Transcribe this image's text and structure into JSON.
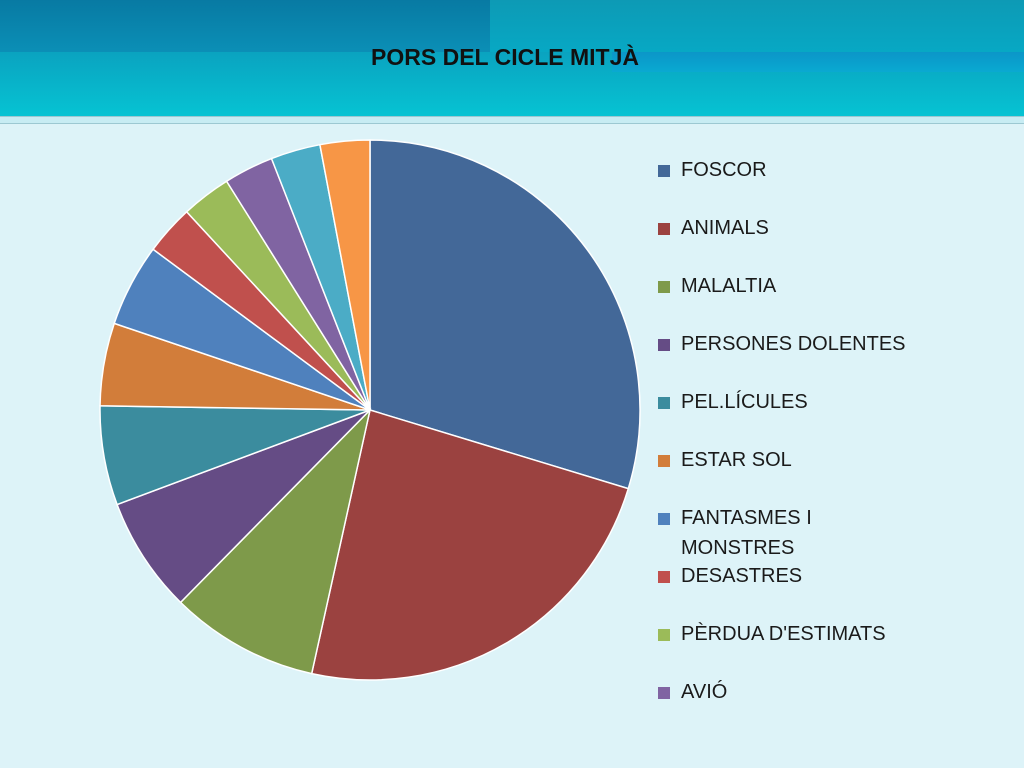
{
  "slide": {
    "title": "PORS DEL CICLE MITJÀ"
  },
  "chart_data": {
    "type": "pie",
    "title": "PORS DEL CICLE MITJÀ",
    "legend_position": "right",
    "slices": [
      {
        "label": "FOSCOR",
        "value": 30,
        "color": "#436898"
      },
      {
        "label": "ANIMALS",
        "value": 24,
        "color": "#9b4240"
      },
      {
        "label": "MALALTIA",
        "value": 9,
        "color": "#7e9a4a"
      },
      {
        "label": "PERSONES DOLENTES",
        "value": 7,
        "color": "#654c85"
      },
      {
        "label": "PEL.LÍCULES",
        "value": 6,
        "color": "#3b8c9e"
      },
      {
        "label": "ESTAR SOL",
        "value": 5,
        "color": "#d27d3a"
      },
      {
        "label": "FANTASMES I MONSTRES",
        "value": 5,
        "color": "#4f81bd"
      },
      {
        "label": "DESASTRES",
        "value": 3,
        "color": "#c0504d"
      },
      {
        "label": "PÈRDUA D'ESTIMATS",
        "value": 3,
        "color": "#9bbb59"
      },
      {
        "label": "AVIÓ",
        "value": 3,
        "color": "#8064a2"
      },
      {
        "label": "",
        "value": 3,
        "color": "#4bacc6"
      },
      {
        "label": "",
        "value": 3,
        "color": "#f79646"
      }
    ]
  }
}
